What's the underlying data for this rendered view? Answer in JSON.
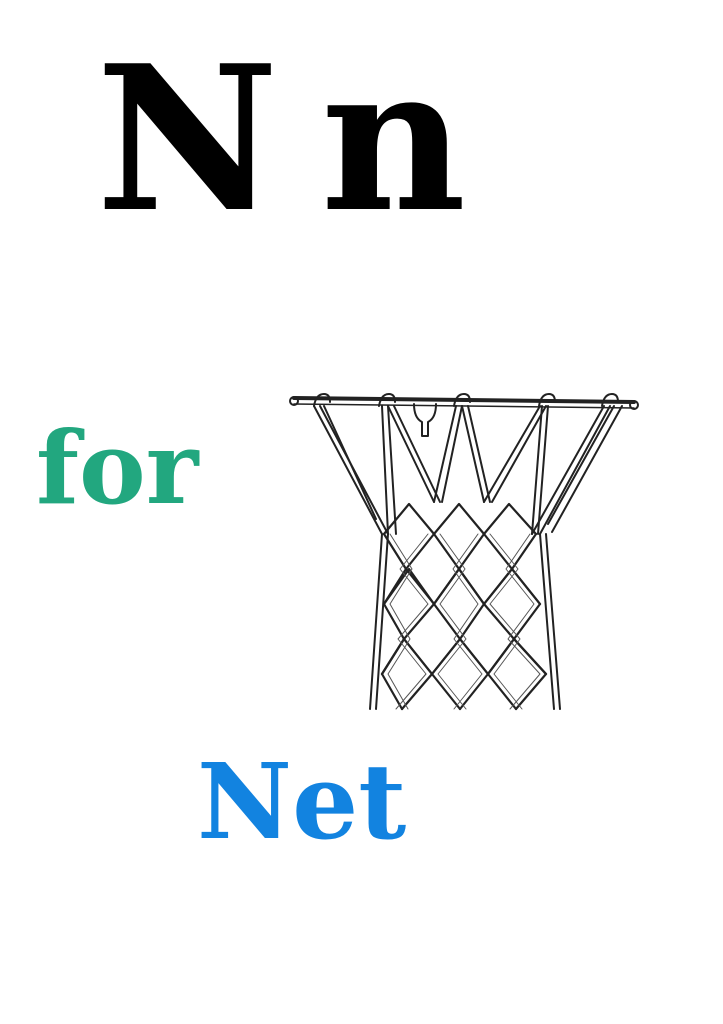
{
  "card": {
    "upper_letter": "N",
    "lower_letter": "n",
    "connector": "for",
    "word": "Net",
    "colors": {
      "letters": "#000000",
      "connector": "#22a77f",
      "word": "#1283e0"
    },
    "illustration": "basketball-net-icon"
  }
}
